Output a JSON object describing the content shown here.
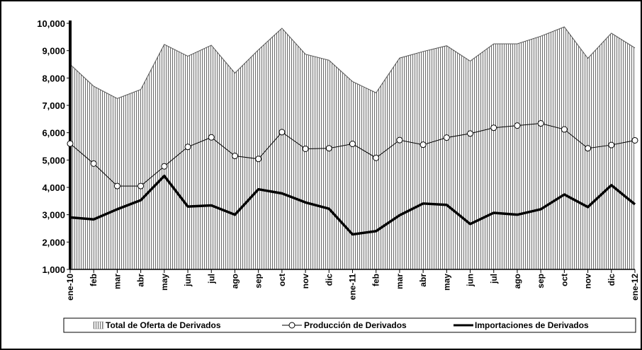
{
  "chart_data": {
    "type": "area",
    "categories": [
      "ene-10",
      "feb",
      "mar",
      "abr",
      "may",
      "jun",
      "jul",
      "ago",
      "sep",
      "oct",
      "nov",
      "dic",
      "ene-11",
      "feb",
      "mar",
      "abr",
      "may",
      "jun",
      "jul",
      "ago",
      "sep",
      "oct",
      "nov",
      "dic",
      "ene-12"
    ],
    "series": [
      {
        "name": "Total de Oferta de Derivados",
        "type": "area",
        "color": "#000000",
        "values": [
          8500,
          7700,
          7250,
          7580,
          9230,
          8800,
          9200,
          8180,
          9030,
          9820,
          8870,
          8650,
          7870,
          7460,
          8730,
          8970,
          9180,
          8620,
          9250,
          9250,
          9530,
          9870,
          8720,
          9640,
          9100
        ]
      },
      {
        "name": "Producción de Derivados",
        "type": "line-marker",
        "color": "#000000",
        "values": [
          5600,
          4870,
          4050,
          4050,
          4770,
          5480,
          5830,
          5150,
          5040,
          6020,
          5410,
          5430,
          5590,
          5080,
          5730,
          5560,
          5820,
          5970,
          6180,
          6260,
          6340,
          6120,
          5430,
          5550,
          5720
        ]
      },
      {
        "name": "Importaciones de Derivados",
        "type": "line-thick",
        "color": "#000000",
        "values": [
          2900,
          2830,
          3200,
          3530,
          4420,
          3300,
          3340,
          3000,
          3930,
          3780,
          3450,
          3220,
          2280,
          2400,
          2980,
          3410,
          3360,
          2660,
          3070,
          3000,
          3200,
          3740,
          3280,
          4080,
          3380
        ]
      }
    ],
    "y_ticks": [
      "1,000",
      "2,000",
      "3,000",
      "4,000",
      "5,000",
      "6,000",
      "7,000",
      "8,000",
      "9,000",
      "10,000"
    ],
    "ylim": [
      1000,
      10000
    ],
    "grid": false,
    "legend_position": "bottom"
  }
}
